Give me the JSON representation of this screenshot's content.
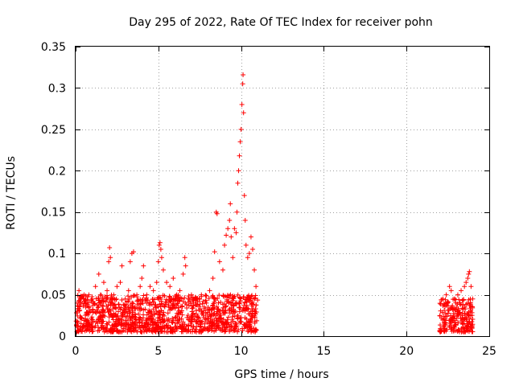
{
  "chart_data": {
    "type": "scatter",
    "title": "Day 295 of 2022, Rate Of TEC Index for receiver pohn",
    "xlabel": "GPS time / hours",
    "ylabel": "ROTI / TECUs",
    "xlim": [
      0,
      25
    ],
    "ylim": [
      0,
      0.35
    ],
    "grid": true,
    "marker": "+",
    "color": "#ff0000",
    "x_ticks": [
      0,
      5,
      10,
      15,
      20,
      25
    ],
    "x_tick_labels": [
      "0",
      "5",
      "10",
      "15",
      "20",
      "25"
    ],
    "y_ticks": [
      0,
      0.05,
      0.1,
      0.15,
      0.2,
      0.25,
      0.3,
      0.35
    ],
    "y_tick_labels": [
      "0",
      "0.05",
      "0.1",
      "0.15",
      "0.2",
      "0.25",
      "0.3",
      "0.35"
    ],
    "series": [
      {
        "name": "ROTI",
        "points": [
          [
            0.1,
            0.03
          ],
          [
            0.2,
            0.055
          ],
          [
            0.3,
            0.045
          ],
          [
            0.5,
            0.04
          ],
          [
            0.6,
            0.035
          ],
          [
            0.8,
            0.05
          ],
          [
            1.0,
            0.045
          ],
          [
            1.2,
            0.06
          ],
          [
            1.4,
            0.075
          ],
          [
            1.5,
            0.05
          ],
          [
            1.7,
            0.065
          ],
          [
            1.9,
            0.055
          ],
          [
            2.0,
            0.09
          ],
          [
            2.05,
            0.107
          ],
          [
            2.1,
            0.095
          ],
          [
            2.3,
            0.05
          ],
          [
            2.5,
            0.06
          ],
          [
            2.7,
            0.065
          ],
          [
            2.8,
            0.085
          ],
          [
            3.0,
            0.045
          ],
          [
            3.2,
            0.055
          ],
          [
            3.3,
            0.09
          ],
          [
            3.4,
            0.1
          ],
          [
            3.5,
            0.102
          ],
          [
            3.7,
            0.05
          ],
          [
            3.9,
            0.06
          ],
          [
            4.0,
            0.07
          ],
          [
            4.1,
            0.085
          ],
          [
            4.3,
            0.05
          ],
          [
            4.5,
            0.06
          ],
          [
            4.7,
            0.055
          ],
          [
            4.9,
            0.065
          ],
          [
            5.0,
            0.09
          ],
          [
            5.05,
            0.11
          ],
          [
            5.1,
            0.113
          ],
          [
            5.15,
            0.105
          ],
          [
            5.2,
            0.095
          ],
          [
            5.3,
            0.08
          ],
          [
            5.5,
            0.065
          ],
          [
            5.7,
            0.06
          ],
          [
            5.9,
            0.07
          ],
          [
            6.1,
            0.05
          ],
          [
            6.3,
            0.055
          ],
          [
            6.5,
            0.075
          ],
          [
            6.6,
            0.095
          ],
          [
            6.65,
            0.085
          ],
          [
            6.8,
            0.045
          ],
          [
            7.0,
            0.05
          ],
          [
            7.3,
            0.045
          ],
          [
            7.6,
            0.05
          ],
          [
            7.9,
            0.04
          ],
          [
            8.1,
            0.055
          ],
          [
            8.3,
            0.07
          ],
          [
            8.4,
            0.102
          ],
          [
            8.5,
            0.15
          ],
          [
            8.55,
            0.148
          ],
          [
            8.7,
            0.09
          ],
          [
            8.9,
            0.08
          ],
          [
            9.0,
            0.11
          ],
          [
            9.1,
            0.122
          ],
          [
            9.2,
            0.13
          ],
          [
            9.3,
            0.14
          ],
          [
            9.35,
            0.16
          ],
          [
            9.4,
            0.12
          ],
          [
            9.5,
            0.095
          ],
          [
            9.6,
            0.13
          ],
          [
            9.7,
            0.125
          ],
          [
            9.75,
            0.15
          ],
          [
            9.8,
            0.185
          ],
          [
            9.85,
            0.2
          ],
          [
            9.9,
            0.218
          ],
          [
            9.95,
            0.235
          ],
          [
            10.0,
            0.25
          ],
          [
            10.05,
            0.28
          ],
          [
            10.1,
            0.305
          ],
          [
            10.12,
            0.316
          ],
          [
            10.15,
            0.27
          ],
          [
            10.2,
            0.17
          ],
          [
            10.25,
            0.14
          ],
          [
            10.3,
            0.11
          ],
          [
            10.4,
            0.095
          ],
          [
            10.5,
            0.1
          ],
          [
            10.6,
            0.12
          ],
          [
            10.7,
            0.105
          ],
          [
            10.8,
            0.08
          ],
          [
            10.9,
            0.06
          ],
          [
            22.2,
            0.045
          ],
          [
            22.4,
            0.05
          ],
          [
            22.6,
            0.06
          ],
          [
            22.7,
            0.055
          ],
          [
            22.9,
            0.045
          ],
          [
            23.1,
            0.05
          ],
          [
            23.3,
            0.055
          ],
          [
            23.5,
            0.06
          ],
          [
            23.6,
            0.065
          ],
          [
            23.7,
            0.07
          ],
          [
            23.75,
            0.075
          ],
          [
            23.8,
            0.078
          ],
          [
            23.9,
            0.06
          ],
          [
            24.0,
            0.045
          ]
        ],
        "baseline_segments": [
          {
            "x_start": 0,
            "x_end": 11.0,
            "y_min": 0.005,
            "y_max": 0.05
          },
          {
            "x_start": 22.0,
            "x_end": 24.0,
            "y_min": 0.005,
            "y_max": 0.045
          }
        ]
      }
    ]
  }
}
